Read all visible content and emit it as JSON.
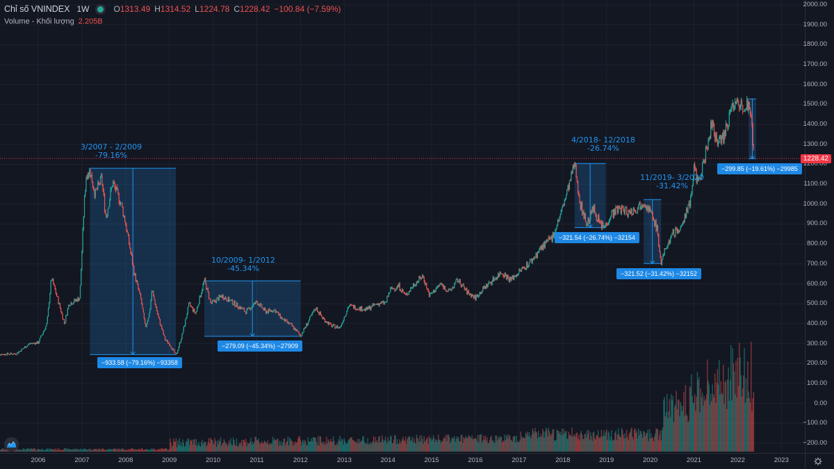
{
  "header": {
    "symbol": "Chỉ số VNINDEX",
    "timeframe": "1W",
    "open_label": "O",
    "open": "1313.49",
    "high_label": "H",
    "high": "1314.52",
    "low_label": "L",
    "low": "1224.78",
    "close_label": "C",
    "close": "1228.42",
    "change": "−100.84 (−7.59%)",
    "volume_label": "Volume - Khối lượng",
    "volume_value": "2.205B"
  },
  "current_price_tag": "1228.42",
  "colors": {
    "background": "#131722",
    "up": "#26a69a",
    "down": "#ef5350",
    "annotation": "#2196f3",
    "annotation_box": "#1e88e5",
    "price_line": "#f23645"
  },
  "chart_data": {
    "type": "candlestick",
    "title": "Chỉ số VNINDEX 1W",
    "xlabel": "",
    "ylabel": "",
    "ylim": [
      -200,
      2000
    ],
    "y_ticks": [
      "2000.00",
      "1900.00",
      "1800.00",
      "1700.00",
      "1600.00",
      "1500.00",
      "1400.00",
      "1300.00",
      "1200.00",
      "1100.00",
      "1000.00",
      "900.00",
      "800.00",
      "700.00",
      "600.00",
      "500.00",
      "400.00",
      "300.00",
      "200.00",
      "100.00",
      "0.00",
      "−100.00",
      "−200.00"
    ],
    "x_ticks": [
      "2006",
      "2007",
      "2008",
      "2009",
      "2010",
      "2011",
      "2012",
      "2013",
      "2014",
      "2015",
      "2016",
      "2017",
      "2018",
      "2019",
      "2020",
      "2021",
      "2022",
      "2023"
    ],
    "grid": true,
    "last_close": 1228.42,
    "price_path": [
      [
        2005.0,
        245
      ],
      [
        2005.5,
        250
      ],
      [
        2005.8,
        300
      ],
      [
        2006.0,
        305
      ],
      [
        2006.2,
        400
      ],
      [
        2006.3,
        630
      ],
      [
        2006.45,
        520
      ],
      [
        2006.6,
        400
      ],
      [
        2006.7,
        500
      ],
      [
        2006.8,
        510
      ],
      [
        2006.95,
        530
      ],
      [
        2007.05,
        1000
      ],
      [
        2007.1,
        1150
      ],
      [
        2007.18,
        1170
      ],
      [
        2007.3,
        1050
      ],
      [
        2007.45,
        1130
      ],
      [
        2007.55,
        930
      ],
      [
        2007.7,
        1110
      ],
      [
        2007.9,
        1000
      ],
      [
        2008.0,
        900
      ],
      [
        2008.2,
        650
      ],
      [
        2008.35,
        520
      ],
      [
        2008.45,
        380
      ],
      [
        2008.55,
        460
      ],
      [
        2008.6,
        570
      ],
      [
        2008.75,
        430
      ],
      [
        2008.9,
        320
      ],
      [
        2009.0,
        300
      ],
      [
        2009.15,
        240
      ],
      [
        2009.3,
        350
      ],
      [
        2009.45,
        500
      ],
      [
        2009.6,
        450
      ],
      [
        2009.8,
        620
      ],
      [
        2009.95,
        500
      ],
      [
        2010.2,
        540
      ],
      [
        2010.5,
        500
      ],
      [
        2010.75,
        460
      ],
      [
        2011.0,
        510
      ],
      [
        2011.2,
        460
      ],
      [
        2011.4,
        470
      ],
      [
        2011.6,
        420
      ],
      [
        2011.8,
        390
      ],
      [
        2012.0,
        340
      ],
      [
        2012.2,
        420
      ],
      [
        2012.35,
        480
      ],
      [
        2012.5,
        430
      ],
      [
        2012.7,
        390
      ],
      [
        2012.9,
        380
      ],
      [
        2013.1,
        490
      ],
      [
        2013.3,
        480
      ],
      [
        2013.5,
        470
      ],
      [
        2013.75,
        500
      ],
      [
        2013.95,
        505
      ],
      [
        2014.05,
        570
      ],
      [
        2014.25,
        590
      ],
      [
        2014.4,
        540
      ],
      [
        2014.6,
        600
      ],
      [
        2014.8,
        640
      ],
      [
        2014.95,
        540
      ],
      [
        2015.2,
        600
      ],
      [
        2015.4,
        560
      ],
      [
        2015.6,
        620
      ],
      [
        2015.8,
        560
      ],
      [
        2016.0,
        530
      ],
      [
        2016.2,
        580
      ],
      [
        2016.4,
        620
      ],
      [
        2016.6,
        660
      ],
      [
        2016.8,
        620
      ],
      [
        2017.0,
        660
      ],
      [
        2017.3,
        720
      ],
      [
        2017.5,
        780
      ],
      [
        2017.75,
        830
      ],
      [
        2017.95,
        950
      ],
      [
        2018.15,
        1100
      ],
      [
        2018.27,
        1204
      ],
      [
        2018.4,
        1000
      ],
      [
        2018.55,
        900
      ],
      [
        2018.7,
        980
      ],
      [
        2018.85,
        900
      ],
      [
        2018.95,
        882
      ],
      [
        2019.1,
        950
      ],
      [
        2019.3,
        980
      ],
      [
        2019.5,
        960
      ],
      [
        2019.7,
        980
      ],
      [
        2019.85,
        1020
      ],
      [
        2020.0,
        960
      ],
      [
        2020.15,
        880
      ],
      [
        2020.25,
        700
      ],
      [
        2020.35,
        780
      ],
      [
        2020.5,
        850
      ],
      [
        2020.7,
        880
      ],
      [
        2020.9,
        1000
      ],
      [
        2021.0,
        1180
      ],
      [
        2021.1,
        1100
      ],
      [
        2021.25,
        1240
      ],
      [
        2021.4,
        1400
      ],
      [
        2021.55,
        1300
      ],
      [
        2021.7,
        1350
      ],
      [
        2021.85,
        1480
      ],
      [
        2022.0,
        1510
      ],
      [
        2022.1,
        1490
      ],
      [
        2022.2,
        1520
      ],
      [
        2022.3,
        1450
      ],
      [
        2022.38,
        1228
      ]
    ],
    "annotations": [
      {
        "period": "3/2007 - 2/2009",
        "change_pct": "-79.16%",
        "measure": "−933.58 (−79.16%) −93358",
        "from": 2007.18,
        "to": 2009.15,
        "high": 1180,
        "low": 245
      },
      {
        "period": "10/2009- 1/2012",
        "change_pct": "-45.34%",
        "measure": "−279.09 (−45.34%) −27909",
        "from": 2009.8,
        "to": 2012.0,
        "high": 615,
        "low": 337
      },
      {
        "period": "4/2018- 12/2018",
        "change_pct": "-26.74%",
        "measure": "−321.54 (−26.74%) −32154",
        "from": 2018.27,
        "to": 2018.98,
        "high": 1204,
        "low": 882
      },
      {
        "period": "11/2019- 3/2020",
        "change_pct": "-31.42%",
        "measure": "−321.52 (−31.42%) −32152",
        "from": 2019.85,
        "to": 2020.25,
        "high": 1023,
        "low": 702
      },
      {
        "period": "",
        "change_pct": "",
        "measure": "−299.85 (−19.61%) −29985",
        "from": 2022.25,
        "to": 2022.42,
        "high": 1528,
        "low": 1228
      }
    ],
    "volume_series_name": "Volume - Khối lượng",
    "volume_last": "2.205B"
  },
  "annotation_labels": [
    {
      "title": "3/2007 - 2/2009",
      "pct": "-79.16%",
      "measure": "−933.58 (−79.16%) −93358"
    },
    {
      "title": "10/2009- 1/2012",
      "pct": "-45.34%",
      "measure": "−279.09 (−45.34%) −27909"
    },
    {
      "title": "4/2018- 12/2018",
      "pct": "-26.74%",
      "measure": "−321.54 (−26.74%) −32154"
    },
    {
      "title": "11/2019- 3/2020",
      "pct": "-31.42%",
      "measure": "−321.52 (−31.42%) −32152"
    },
    {
      "title": "",
      "pct": "",
      "measure": "−299.85 (−19.61%) −29985"
    }
  ],
  "icons": {
    "logo": "tradingview-logo-icon",
    "settings": "gear-icon"
  }
}
